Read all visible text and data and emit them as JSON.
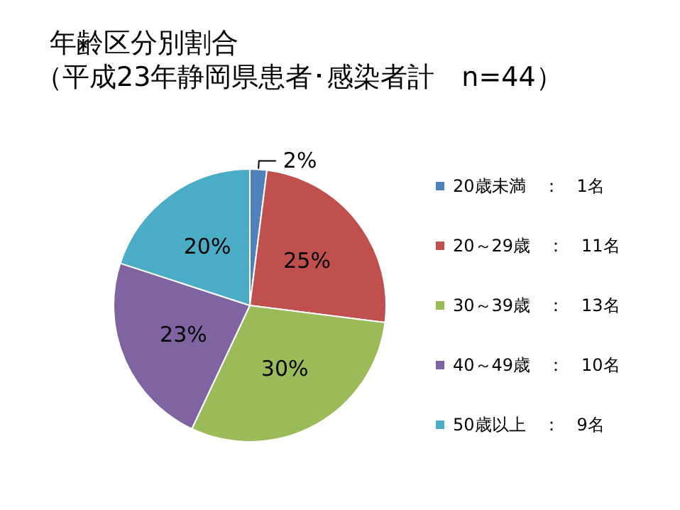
{
  "chart_data": {
    "type": "pie",
    "title": "年齢区分別割合",
    "subtitle": "（平成23年静岡県患者･感染者計　n=44）",
    "categories": [
      "20歳未満　：　1名",
      "20～29歳　：　11名",
      "30～39歳　：　13名",
      "40～49歳　：　10名",
      "50歳以上　：　9名"
    ],
    "values": [
      2,
      25,
      30,
      23,
      20
    ],
    "colors": [
      "#4f81bd",
      "#c0504d",
      "#9bbb59",
      "#8064a2",
      "#4bacc6"
    ],
    "value_labels": [
      "2%",
      "25%",
      "30%",
      "23%",
      "20%"
    ],
    "legend": "right"
  }
}
